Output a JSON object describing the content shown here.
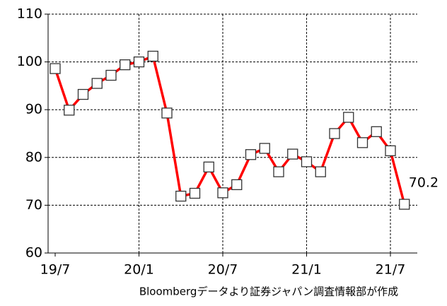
{
  "chart_data": {
    "type": "line",
    "categories": [
      "19/7",
      null,
      null,
      null,
      null,
      null,
      "20/1",
      null,
      null,
      null,
      null,
      null,
      "20/7",
      null,
      null,
      null,
      null,
      null,
      "21/1",
      null,
      null,
      null,
      null,
      null,
      "21/7",
      null
    ],
    "series": [
      {
        "color": "#ff0000",
        "values": [
          98.6,
          89.9,
          93.2,
          95.5,
          97.2,
          99.4,
          100.0,
          101.2,
          89.3,
          71.9,
          72.5,
          78.0,
          72.6,
          74.3,
          80.6,
          81.9,
          77.0,
          80.7,
          79.1,
          77.0,
          85.0,
          88.4,
          83.1,
          85.4,
          81.4,
          70.2
        ]
      }
    ],
    "ylim": [
      60,
      110
    ],
    "yticks": [
      60,
      70,
      80,
      90,
      100,
      110
    ],
    "grid": true,
    "source": "Bloombergデータより証券ジャパン調査情報部が作成"
  }
}
